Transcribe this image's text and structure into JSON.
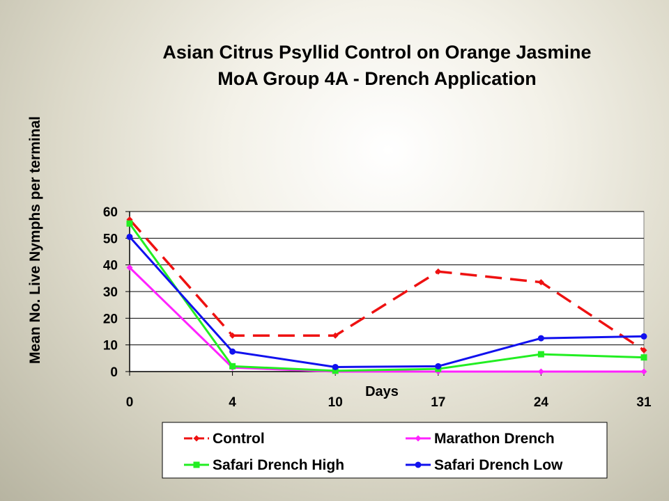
{
  "chart_data": {
    "type": "line",
    "title_lines": [
      "Asian Citrus Psyllid Control on Orange Jasmine",
      "MoA Group 4A - Drench Application"
    ],
    "xlabel": "Days",
    "ylabel": "Mean No. Live Nymphs per terminal",
    "categories": [
      "0",
      "4",
      "10",
      "17",
      "24",
      "31"
    ],
    "ylim": [
      0,
      60
    ],
    "yticks": [
      0,
      10,
      20,
      30,
      40,
      50,
      60
    ],
    "grid": true,
    "legend_position": "bottom",
    "series": [
      {
        "name": "Control",
        "color": "#ee1111",
        "dash": true,
        "marker": "diamond",
        "values": [
          57,
          13.5,
          13.5,
          37.5,
          33.5,
          8
        ]
      },
      {
        "name": "Marathon Drench",
        "color": "#ff22ff",
        "dash": false,
        "marker": "diamond",
        "values": [
          39,
          1.5,
          0,
          0,
          0,
          0
        ]
      },
      {
        "name": "Safari Drench High",
        "color": "#22ee22",
        "dash": false,
        "marker": "square",
        "values": [
          55.5,
          2,
          0.3,
          1,
          6.5,
          5.3
        ]
      },
      {
        "name": "Safari Drench Low",
        "color": "#1111ee",
        "dash": false,
        "marker": "circle",
        "values": [
          50.5,
          7.5,
          1.7,
          2,
          12.5,
          13.2
        ]
      }
    ]
  }
}
